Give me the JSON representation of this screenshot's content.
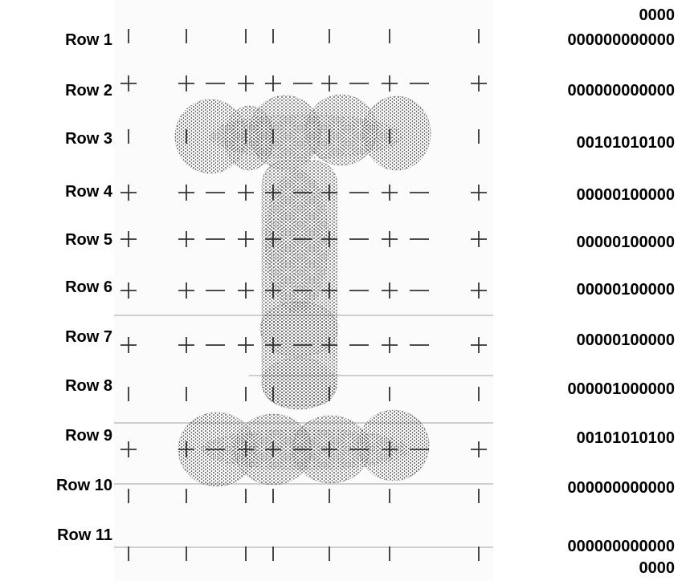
{
  "row_labels": [
    "Row 1",
    "Row 2",
    "Row 3",
    "Row 4",
    "Row 5",
    "Row 6",
    "Row 7",
    "Row 8",
    "Row 9",
    "Row 10",
    "Row 11"
  ],
  "codes": {
    "top_extra": "0000",
    "rows": [
      "000000000000",
      "000000000000",
      "00101010100",
      "00000100000",
      "00000100000",
      "00000100000",
      "00000100000",
      "000001000000",
      "00101010100",
      "000000000000",
      "000000000000"
    ],
    "bottom_extra": "0000"
  },
  "row_symbols": [
    "|||||||",
    "++-++-+-+-+",
    "|||||||",
    "++-++-+-+-+",
    "++-++-+-+-+",
    "++-++-+-+-+",
    "++-++-+-+-+",
    "||||||",
    "++-++-+-+-+",
    "|||||||",
    "|||||||"
  ],
  "colors": {
    "text": "#000000",
    "mark": "#333333",
    "stipple": "#2a2a2a",
    "divider": "#cfcfcf",
    "panel": "#fbfbfb"
  }
}
